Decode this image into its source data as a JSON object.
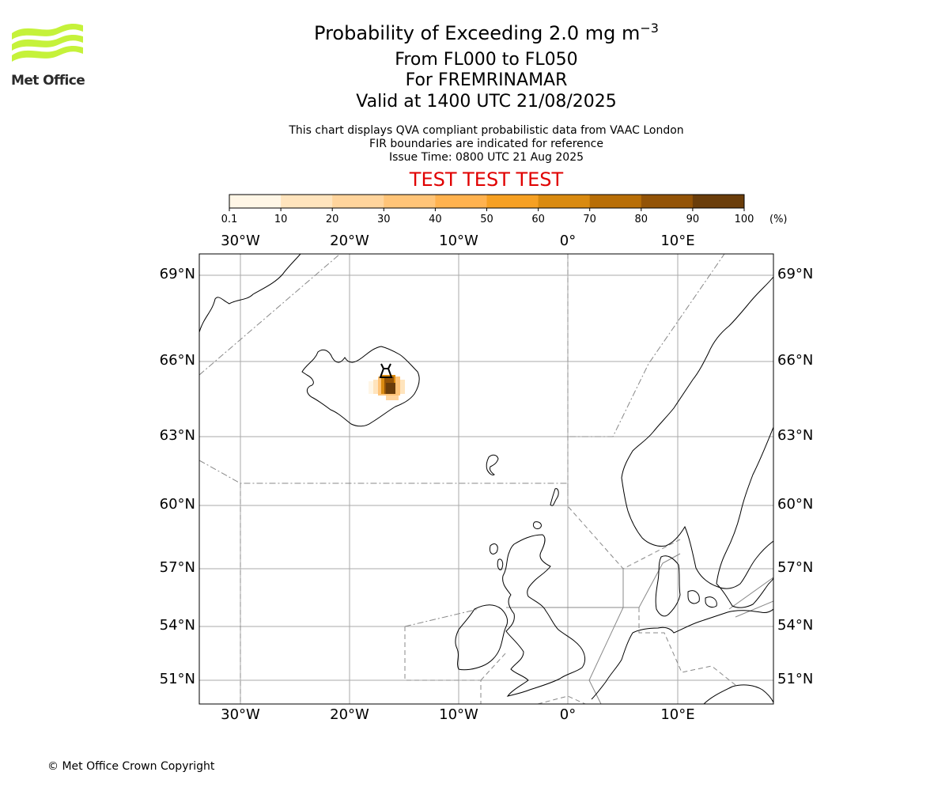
{
  "header": {
    "title": "Probability of Exceeding 2.0 mg m",
    "title_superscript": "−3",
    "level_range": "From FL000 to FL050",
    "location": "For FREMRINAMAR",
    "valid_time": "Valid at 1400 UTC 21/08/2025"
  },
  "subheader": {
    "line1": "This chart displays QVA compliant probabilistic data from VAAC London",
    "line2": "FIR boundaries are indicated for reference",
    "issue_time": "Issue Time: 0800 UTC 21 Aug 2025"
  },
  "banner": "TEST TEST TEST",
  "logo": {
    "text": "Met Office",
    "color": "#c5f23a"
  },
  "colorbar": {
    "tick_labels": [
      "0.1",
      "10",
      "20",
      "30",
      "40",
      "50",
      "60",
      "70",
      "80",
      "90",
      "100"
    ],
    "unit": "(%)",
    "colors": [
      "#fff6e6",
      "#ffe4bd",
      "#ffd49c",
      "#ffc478",
      "#ffb24f",
      "#f6a023",
      "#d98a10",
      "#b86e06",
      "#935306",
      "#6a3d0a"
    ]
  },
  "map": {
    "lon_labels_top": [
      "30°W",
      "20°W",
      "10°W",
      "0°",
      "10°E"
    ],
    "lon_labels_bottom": [
      "30°W",
      "20°W",
      "10°W",
      "0°",
      "10°E"
    ],
    "lat_labels_left": [
      "69°N",
      "66°N",
      "63°N",
      "60°N",
      "57°N",
      "54°N",
      "51°N"
    ],
    "lat_labels_right": [
      "69°N",
      "66°N",
      "63°N",
      "60°N",
      "57°N",
      "54°N",
      "51°N"
    ],
    "grid_color": "#aaaaaa",
    "fir_color": "#888888",
    "volcano_marker": "volcano-icon"
  },
  "footer": {
    "copyright": "© Met Office Crown Copyright"
  }
}
